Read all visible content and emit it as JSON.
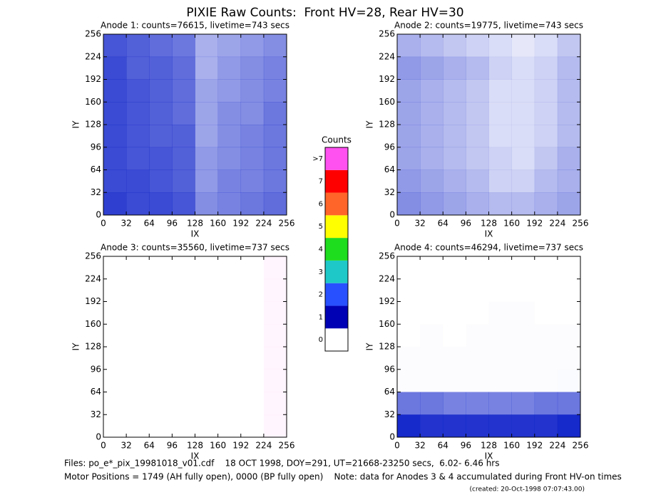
{
  "title": "PIXIE Raw Counts:  Front HV=28, Rear HV=30",
  "chart_data": [
    {
      "type": "heatmap",
      "title": "Anode 1: counts=76615, livetime=743 secs",
      "xlabel": "IX",
      "ylabel": "IY",
      "xlim": [
        0,
        256
      ],
      "ylim": [
        0,
        256
      ],
      "xticks": [
        0,
        32,
        64,
        96,
        128,
        160,
        192,
        224,
        256
      ],
      "yticks": [
        0,
        32,
        64,
        96,
        128,
        160,
        192,
        224,
        256
      ],
      "color": "#0a1ec8",
      "values": [
        [
          0.85,
          0.8,
          0.8,
          0.75,
          0.5,
          0.55,
          0.6,
          0.65
        ],
        [
          0.8,
          0.8,
          0.75,
          0.7,
          0.45,
          0.55,
          0.55,
          0.6
        ],
        [
          0.8,
          0.75,
          0.75,
          0.7,
          0.45,
          0.5,
          0.55,
          0.6
        ],
        [
          0.8,
          0.75,
          0.7,
          0.7,
          0.4,
          0.5,
          0.55,
          0.6
        ],
        [
          0.8,
          0.75,
          0.7,
          0.65,
          0.4,
          0.5,
          0.5,
          0.6
        ],
        [
          0.8,
          0.75,
          0.7,
          0.65,
          0.4,
          0.45,
          0.5,
          0.55
        ],
        [
          0.8,
          0.7,
          0.7,
          0.65,
          0.35,
          0.45,
          0.5,
          0.55
        ],
        [
          0.75,
          0.7,
          0.65,
          0.6,
          0.35,
          0.4,
          0.45,
          0.5
        ]
      ]
    },
    {
      "type": "heatmap",
      "title": "Anode 2: counts=19775, livetime=743 secs",
      "xlabel": "IX",
      "ylabel": "IY",
      "xlim": [
        0,
        256
      ],
      "ylim": [
        0,
        256
      ],
      "xticks": [
        0,
        32,
        64,
        96,
        128,
        160,
        192,
        224,
        256
      ],
      "yticks": [
        0,
        32,
        64,
        96,
        128,
        160,
        192,
        224,
        256
      ],
      "color": "#0a1ec8",
      "values": [
        [
          0.5,
          0.45,
          0.4,
          0.35,
          0.3,
          0.3,
          0.35,
          0.4
        ],
        [
          0.45,
          0.4,
          0.35,
          0.3,
          0.2,
          0.2,
          0.3,
          0.35
        ],
        [
          0.4,
          0.35,
          0.3,
          0.25,
          0.2,
          0.15,
          0.25,
          0.35
        ],
        [
          0.4,
          0.35,
          0.3,
          0.25,
          0.15,
          0.15,
          0.2,
          0.3
        ],
        [
          0.4,
          0.35,
          0.3,
          0.25,
          0.15,
          0.15,
          0.2,
          0.3
        ],
        [
          0.4,
          0.35,
          0.3,
          0.25,
          0.15,
          0.15,
          0.2,
          0.3
        ],
        [
          0.45,
          0.4,
          0.35,
          0.3,
          0.2,
          0.15,
          0.2,
          0.3
        ],
        [
          0.35,
          0.3,
          0.25,
          0.2,
          0.15,
          0.1,
          0.15,
          0.25
        ]
      ]
    },
    {
      "type": "heatmap",
      "title": "Anode 3: counts=35560, livetime=737 secs",
      "xlabel": "IX",
      "ylabel": "IY",
      "xlim": [
        0,
        256
      ],
      "ylim": [
        0,
        256
      ],
      "xticks": [
        0,
        32,
        64,
        96,
        128,
        160,
        192,
        224,
        256
      ],
      "yticks": [
        0,
        32,
        64,
        96,
        128,
        160,
        192,
        224,
        256
      ],
      "color": "#ff50f0",
      "values": [
        [
          0,
          0,
          0,
          0,
          0,
          0,
          0,
          0.06
        ],
        [
          0,
          0,
          0,
          0,
          0,
          0,
          0,
          0.06
        ],
        [
          0,
          0,
          0,
          0,
          0,
          0,
          0,
          0.06
        ],
        [
          0,
          0,
          0,
          0,
          0,
          0,
          0,
          0.06
        ],
        [
          0,
          0,
          0,
          0,
          0,
          0,
          0,
          0.06
        ],
        [
          0,
          0,
          0,
          0,
          0,
          0,
          0,
          0.06
        ],
        [
          0,
          0,
          0,
          0,
          0,
          0,
          0,
          0.06
        ],
        [
          0,
          0,
          0,
          0,
          0,
          0,
          0,
          0.06
        ]
      ]
    },
    {
      "type": "heatmap",
      "title": "Anode 4: counts=46294, livetime=737 secs",
      "xlabel": "IX",
      "ylabel": "IY",
      "xlim": [
        0,
        256
      ],
      "ylim": [
        0,
        256
      ],
      "xticks": [
        0,
        32,
        64,
        96,
        128,
        160,
        192,
        224,
        256
      ],
      "yticks": [
        0,
        32,
        64,
        96,
        128,
        160,
        192,
        224,
        256
      ],
      "color": "#0a1ec8",
      "values": [
        [
          0.95,
          0.9,
          0.9,
          0.9,
          0.9,
          0.9,
          0.9,
          0.95
        ],
        [
          0.6,
          0.6,
          0.55,
          0.55,
          0.55,
          0.55,
          0.6,
          0.6
        ],
        [
          0.01,
          0.01,
          0.01,
          0.01,
          0.01,
          0.01,
          0.01,
          0.02
        ],
        [
          0.01,
          0.01,
          0.01,
          0.01,
          0.01,
          0.01,
          0.01,
          0.01
        ],
        [
          0,
          0.01,
          0,
          0.01,
          0.01,
          0.01,
          0.01,
          0.01
        ],
        [
          0,
          0,
          0,
          0,
          0.01,
          0.01,
          0,
          0
        ],
        [
          0,
          0,
          0,
          0,
          0,
          0,
          0,
          0
        ],
        [
          0,
          0,
          0,
          0,
          0,
          0,
          0,
          0
        ]
      ]
    }
  ],
  "colorbar": {
    "title": "Counts",
    "ticks": [
      0,
      1,
      2,
      3,
      4,
      5,
      6,
      7,
      {
        "value": 8,
        "label": ">7"
      }
    ],
    "colors": [
      "#ffffff",
      "#0000b4",
      "#2850ff",
      "#1ec8c8",
      "#1edc1e",
      "#ffff00",
      "#ff6428",
      "#ff0000",
      "#ff50f0"
    ]
  },
  "footer": [
    "Files: po_e*_pix_19981018_v01.cdf    18 OCT 1998, DOY=291, UT=21668-23250 secs,  6.02- 6.46 hrs",
    "Motor Positions = 1749 (AH fully open), 0000 (BP fully open)    Note: data for Anodes 3 & 4 accumulated during Front HV-on times"
  ],
  "created": "(created: 20-Oct-1998 07:07:43.00)"
}
